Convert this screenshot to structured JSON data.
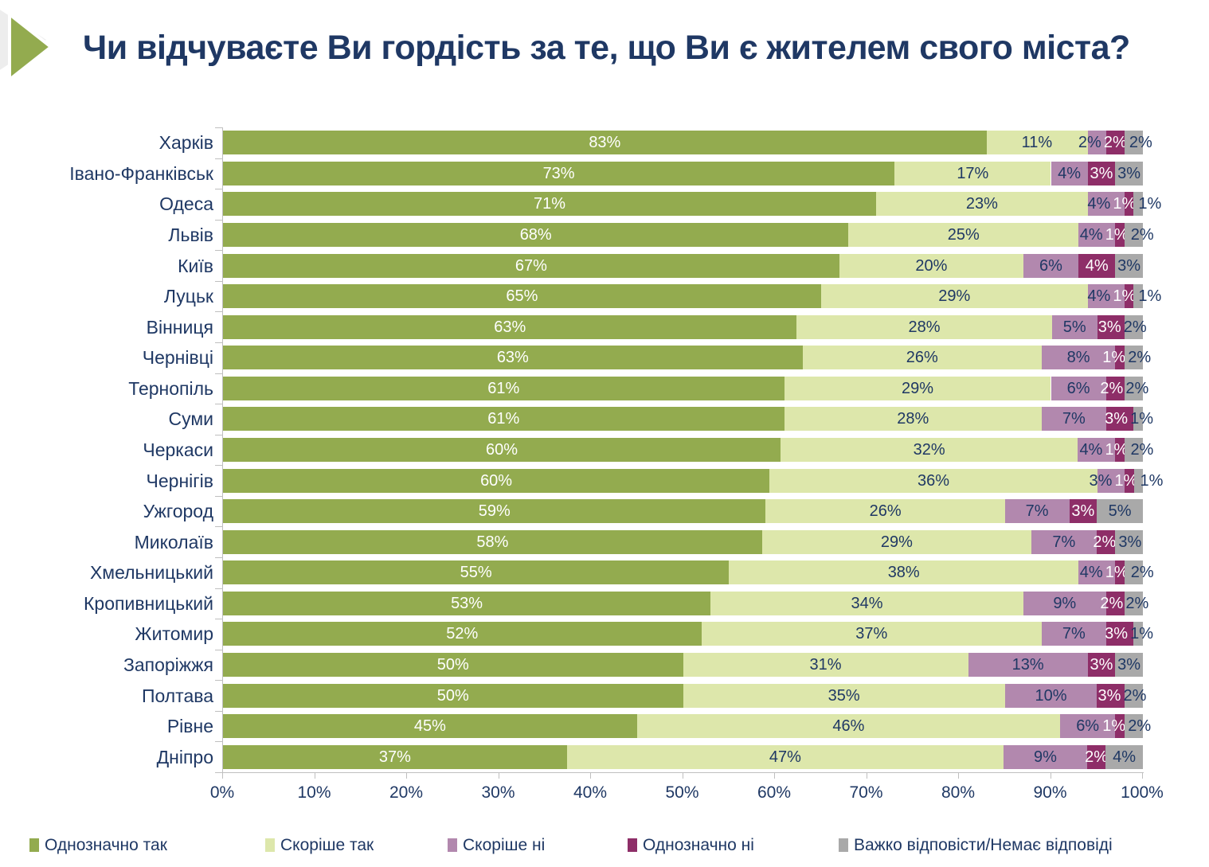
{
  "header": {
    "title": "Чи відчуваєте Ви гордість за те, що Ви є жителем свого міста?",
    "title_color": "#1F3864",
    "arrow_green": "#93AB4F",
    "arrow_gray": "#EDEDED"
  },
  "chart_data": {
    "type": "bar",
    "orientation": "horizontal-stacked",
    "title": "Чи відчуваєте Ви гордість за те, що Ви є жителем свого міста?",
    "xlabel": "",
    "ylabel": "",
    "xlim": [
      0,
      100
    ],
    "x_ticks": [
      "0%",
      "10%",
      "20%",
      "30%",
      "40%",
      "50%",
      "60%",
      "70%",
      "80%",
      "90%",
      "100%"
    ],
    "grid": false,
    "legend_position": "bottom",
    "axis_color": "#BFBFBF",
    "text_color": "#1F3864",
    "value_suffix": "%",
    "categories": [
      "Харків",
      "Івано-Франківськ",
      "Одеса",
      "Львів",
      "Київ",
      "Луцьк",
      "Вінниця",
      "Чернівці",
      "Тернопіль",
      "Суми",
      "Черкаси",
      "Чернігів",
      "Ужгород",
      "Миколаїв",
      "Хмельницький",
      "Кропивницький",
      "Житомир",
      "Запоріжжя",
      "Полтава",
      "Рівне",
      "Дніпро"
    ],
    "series": [
      {
        "name": "Однозначно так",
        "color": "#93AB4F",
        "label_color": "#FFFFFF",
        "values": [
          83,
          73,
          71,
          68,
          67,
          65,
          63,
          63,
          61,
          61,
          60,
          60,
          59,
          58,
          55,
          53,
          52,
          50,
          50,
          45,
          37
        ]
      },
      {
        "name": "Скоріше так",
        "color": "#DDE7AB",
        "label_color": "#1F3864",
        "values": [
          11,
          17,
          23,
          25,
          20,
          29,
          28,
          26,
          29,
          28,
          32,
          36,
          26,
          29,
          38,
          34,
          37,
          31,
          35,
          46,
          47
        ]
      },
      {
        "name": "Скоріше ні",
        "color": "#B288AE",
        "label_color": "#1F3864",
        "values": [
          2,
          4,
          4,
          4,
          6,
          4,
          5,
          8,
          6,
          7,
          4,
          3,
          7,
          7,
          4,
          9,
          7,
          13,
          10,
          6,
          9
        ]
      },
      {
        "name": "Однозначно ні",
        "color": "#8E2E68",
        "label_color": "#FFFFFF",
        "values": [
          2,
          3,
          1,
          1,
          4,
          1,
          3,
          1,
          2,
          3,
          1,
          1,
          3,
          2,
          1,
          2,
          3,
          3,
          3,
          1,
          2
        ]
      },
      {
        "name": "Важко відповісти/Немає відповіді",
        "color": "#A9A9A9",
        "label_color": "#1F3864",
        "values": [
          2,
          3,
          1,
          2,
          3,
          1,
          2,
          2,
          2,
          1,
          2,
          1,
          5,
          3,
          2,
          2,
          1,
          3,
          2,
          2,
          4
        ]
      }
    ]
  }
}
